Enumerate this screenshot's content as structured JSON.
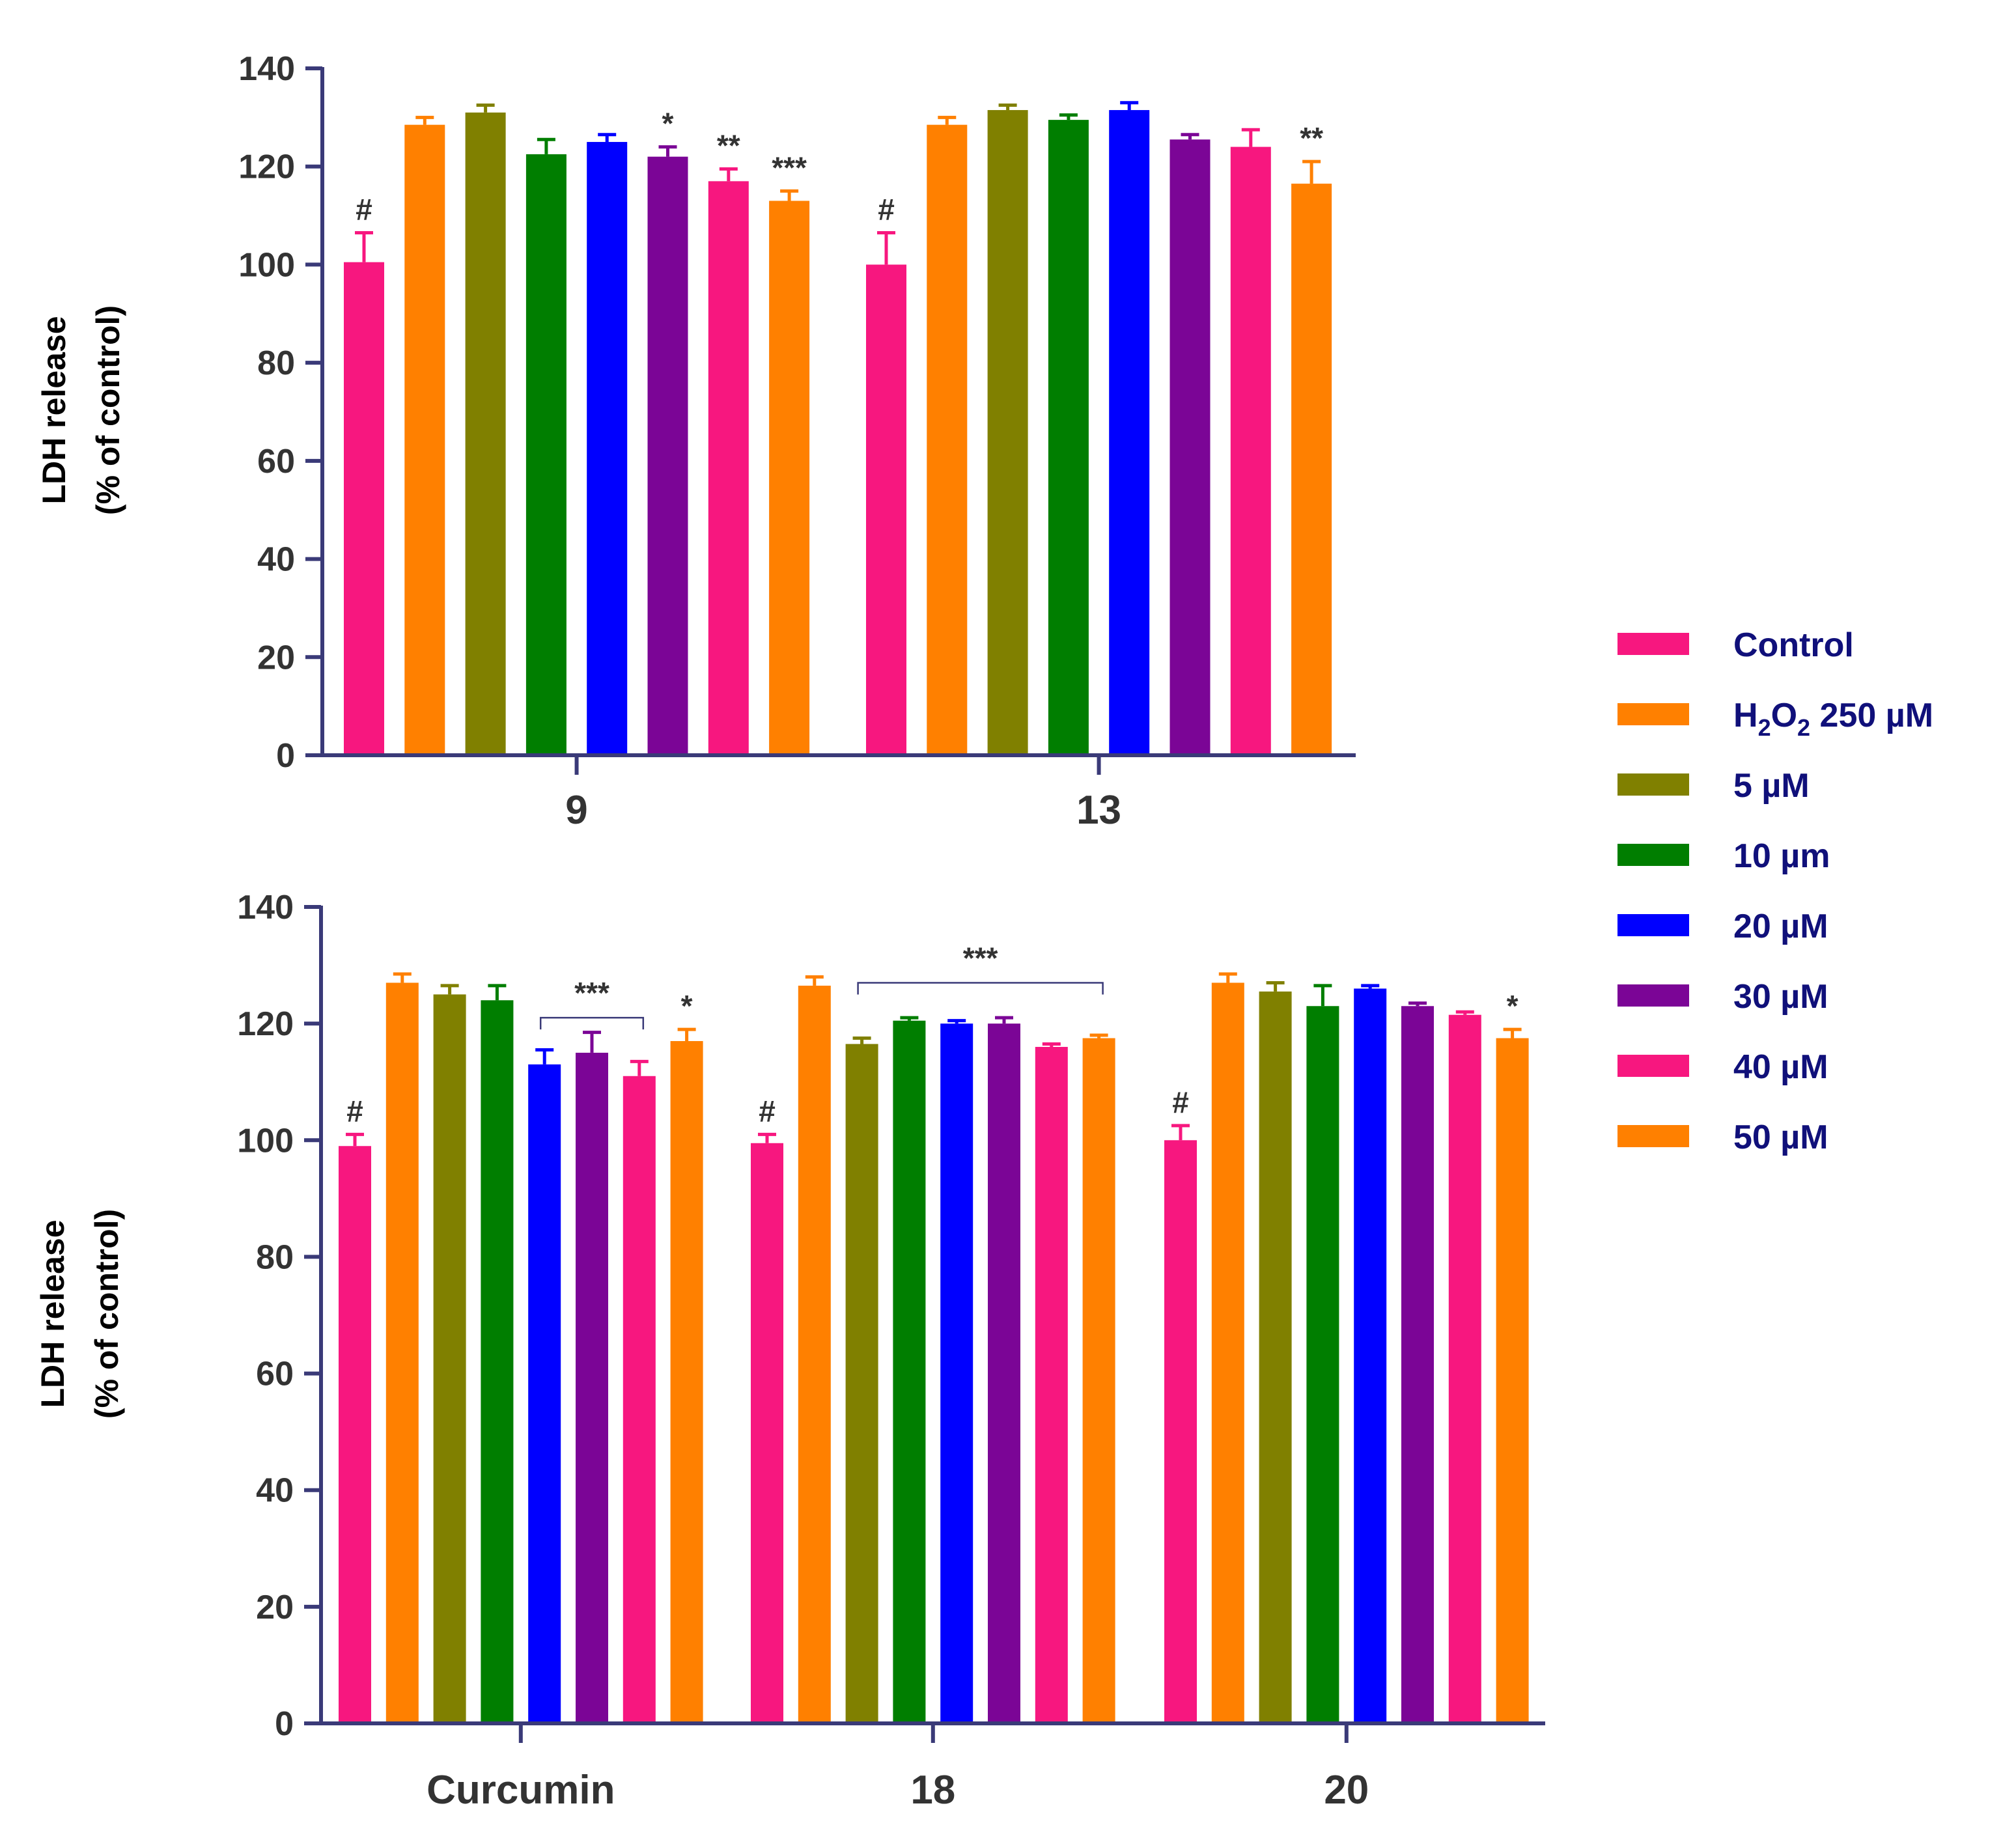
{
  "chart_data": [
    {
      "type": "bar",
      "ylabel_line1": "LDH release",
      "ylabel_line2": "(% of control)",
      "ylim": [
        0,
        140
      ],
      "yticks": [
        0,
        20,
        40,
        60,
        80,
        100,
        120,
        140
      ],
      "categories": [
        "9",
        "13"
      ],
      "series": [
        {
          "name": "Control",
          "values": [
            100.5,
            100
          ],
          "errors": [
            6,
            6.5
          ]
        },
        {
          "name": "H2O2 250 µM",
          "values": [
            128.5,
            128.5
          ],
          "errors": [
            1.5,
            1.5
          ]
        },
        {
          "name": "5 µM",
          "values": [
            131,
            131.5
          ],
          "errors": [
            1.5,
            1
          ]
        },
        {
          "name": "10 µm",
          "values": [
            122.5,
            129.5
          ],
          "errors": [
            3,
            1
          ]
        },
        {
          "name": "20 µM",
          "values": [
            125,
            131.5
          ],
          "errors": [
            1.5,
            1.5
          ]
        },
        {
          "name": "30 µM",
          "values": [
            122,
            125.5
          ],
          "errors": [
            2,
            1
          ]
        },
        {
          "name": "40 µM",
          "values": [
            117,
            124
          ],
          "errors": [
            2.5,
            3.5
          ]
        },
        {
          "name": "50 µM",
          "values": [
            113,
            116.5
          ],
          "errors": [
            2,
            4.5
          ]
        }
      ],
      "annotations": [
        {
          "category": 0,
          "series": 0,
          "text": "#"
        },
        {
          "category": 0,
          "series": 5,
          "text": "*"
        },
        {
          "category": 0,
          "series": 6,
          "text": "**"
        },
        {
          "category": 0,
          "series": 7,
          "text": "***"
        },
        {
          "category": 1,
          "series": 0,
          "text": "#"
        },
        {
          "category": 1,
          "series": 7,
          "text": "**"
        }
      ],
      "brackets": []
    },
    {
      "type": "bar",
      "ylabel_line1": "LDH release",
      "ylabel_line2": "(% of control)",
      "ylim": [
        0,
        140
      ],
      "yticks": [
        0,
        20,
        40,
        60,
        80,
        100,
        120,
        140
      ],
      "categories": [
        "Curcumin",
        "18",
        "20"
      ],
      "series": [
        {
          "name": "Control",
          "values": [
            99,
            99.5,
            100
          ],
          "errors": [
            2,
            1.5,
            2.5
          ]
        },
        {
          "name": "H2O2 250 µM",
          "values": [
            127,
            126.5,
            127
          ],
          "errors": [
            1.5,
            1.5,
            1.5
          ]
        },
        {
          "name": "5 µM",
          "values": [
            125,
            116.5,
            125.5
          ],
          "errors": [
            1.5,
            1,
            1.5
          ]
        },
        {
          "name": "10 µm",
          "values": [
            124,
            120.5,
            123
          ],
          "errors": [
            2.5,
            0.5,
            3.5
          ]
        },
        {
          "name": "20 µM",
          "values": [
            113,
            120,
            126
          ],
          "errors": [
            2.5,
            0.5,
            0.5
          ]
        },
        {
          "name": "30 µM",
          "values": [
            115,
            120,
            123
          ],
          "errors": [
            3.5,
            1,
            0.5
          ]
        },
        {
          "name": "40 µM",
          "values": [
            111,
            116,
            121.5
          ],
          "errors": [
            2.5,
            0.5,
            0.5
          ]
        },
        {
          "name": "50 µM",
          "values": [
            117,
            117.5,
            117.5
          ],
          "errors": [
            2,
            0.5,
            1.5
          ]
        }
      ],
      "annotations": [
        {
          "category": 0,
          "series": 0,
          "text": "#"
        },
        {
          "category": 0,
          "series": 7,
          "text": "*"
        },
        {
          "category": 1,
          "series": 0,
          "text": "#"
        },
        {
          "category": 2,
          "series": 0,
          "text": "#"
        },
        {
          "category": 2,
          "series": 7,
          "text": "*"
        }
      ],
      "brackets": [
        {
          "category": 0,
          "from_series": 4,
          "to_series": 6,
          "level": 121,
          "text": "***"
        },
        {
          "category": 1,
          "from_series": 2,
          "to_series": 7,
          "level": 127,
          "text": "***"
        }
      ]
    }
  ],
  "legend": {
    "items": [
      {
        "label": "Control",
        "color": "#f7177f"
      },
      {
        "label_main": "H",
        "label_sub1": "2",
        "label_mid": "O",
        "label_sub2": "2",
        "label_rest": " 250 µM",
        "color": "#ff8000"
      },
      {
        "label": "5 µM",
        "color": "#808000"
      },
      {
        "label": "10 µm",
        "color": "#007e00"
      },
      {
        "label": "20 µM",
        "color": "#0000ff"
      },
      {
        "label": "30 µM",
        "color": "#7b0596"
      },
      {
        "label": "40 µM",
        "color": "#f7177f"
      },
      {
        "label": "50 µM",
        "color": "#ff8000"
      }
    ]
  },
  "colors": {
    "axis": "#3a3a78",
    "error_bar_from_series": true
  }
}
